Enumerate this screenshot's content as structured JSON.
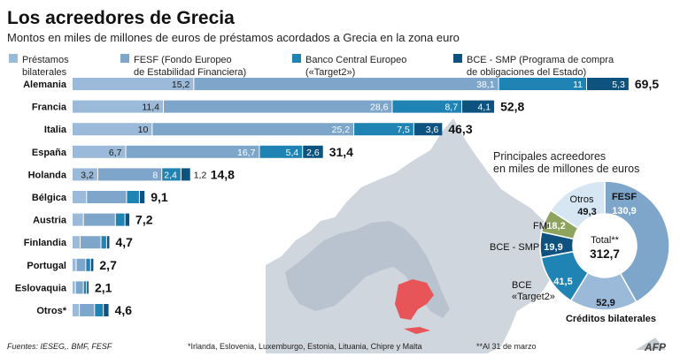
{
  "title": "Los acreedores de Grecia",
  "subtitle": "Montos en miles de millones de euros de préstamos acordados a Grecia en la zona euro",
  "colors": {
    "prestamos": "#9bbad9",
    "fesf": "#7ea6cb",
    "target2": "#1f83b4",
    "smp": "#0e5380",
    "greece": "#e85559",
    "map_land": "#cfd6de",
    "map_euro": "#b8c3cf",
    "fmi": "#8ea35e",
    "otros": "#d7e6f3",
    "rest": "#d9dde2"
  },
  "legend": [
    {
      "key": "prestamos",
      "lines": [
        "Préstamos",
        "bilaterales"
      ]
    },
    {
      "key": "fesf",
      "lines": [
        "FESF (Fondo Europeo",
        "de Estabilidad Financiera)"
      ]
    },
    {
      "key": "target2",
      "lines": [
        "Banco Central Europeo",
        "(«Target2»)"
      ]
    },
    {
      "key": "smp",
      "lines": [
        "BCE - SMP (Programa de compra",
        "de obligaciones del Estado)"
      ]
    }
  ],
  "chart_data": [
    {
      "type": "bar",
      "orientation": "horizontal",
      "stacked": true,
      "categories": [
        "Alemania",
        "Francia",
        "Italia",
        "España",
        "Holanda",
        "Bélgica",
        "Austria",
        "Finlandia",
        "Portugal",
        "Eslovaquia",
        "Otros*"
      ],
      "series": [
        {
          "key": "prestamos",
          "name": "Préstamos bilaterales",
          "values": [
            15.2,
            11.4,
            10,
            6.7,
            3.2,
            1.8,
            1.4,
            1.0,
            0.5,
            0.4,
            0.9
          ]
        },
        {
          "key": "fesf",
          "name": "FESF (Fondo Europeo de Estabilidad Financiera)",
          "values": [
            38.1,
            28.6,
            25.2,
            16.7,
            8,
            5.0,
            4.0,
            2.6,
            1.2,
            1.0,
            1.9
          ]
        },
        {
          "key": "target2",
          "name": "Banco Central Europeo («Target2»)",
          "values": [
            11,
            8.7,
            7.5,
            5.4,
            2.4,
            1.6,
            1.2,
            0.7,
            0.6,
            0.4,
            1.1
          ]
        },
        {
          "key": "smp",
          "name": "BCE - SMP (Programa de compra de obligaciones del Estado)",
          "values": [
            5.3,
            4.1,
            3.6,
            2.6,
            1.2,
            0.7,
            0.6,
            0.4,
            0.4,
            0.3,
            0.7
          ]
        }
      ],
      "segment_labels": [
        [
          "15,2",
          "38,1",
          "11",
          "5,3"
        ],
        [
          "11,4",
          "28,6",
          "8,7",
          "4,1"
        ],
        [
          "10",
          "25,2",
          "7,5",
          "3,6"
        ],
        [
          "6,7",
          "16,7",
          "5,4",
          "2,6"
        ],
        [
          "3,2",
          "8",
          "2,4",
          "1,2"
        ],
        [
          "",
          "",
          "",
          ""
        ],
        [
          "",
          "",
          "",
          ""
        ],
        [
          "",
          "",
          "",
          ""
        ],
        [
          "",
          "",
          "",
          ""
        ],
        [
          "",
          "",
          "",
          ""
        ],
        [
          "",
          "",
          "",
          ""
        ]
      ],
      "totals": [
        "69,5",
        "52,8",
        "46,3",
        "31,4",
        "14,8",
        "9,1",
        "7,2",
        "4,7",
        "2,7",
        "2,1",
        "4,6"
      ],
      "xlim": [
        0,
        69.5
      ],
      "grid": false
    },
    {
      "type": "pie",
      "donut": true,
      "title_lines": [
        "Principales acreedores",
        "en miles de millones de euros"
      ],
      "center_label": "Total**",
      "center_value": "312,7",
      "slices": [
        {
          "name": "FESF",
          "value": 130.9,
          "label": "130,9",
          "colorKey": "fesf"
        },
        {
          "name": "Créditos bilaterales",
          "value": 52.9,
          "label": "52,9",
          "colorKey": "prestamos"
        },
        {
          "name": "BCE «Target2»",
          "value": 41.5,
          "label": "41,5",
          "colorKey": "target2"
        },
        {
          "name": "BCE - SMP",
          "value": 19.9,
          "label": "19,9",
          "colorKey": "smp"
        },
        {
          "name": "FMI",
          "value": 18.2,
          "label": "18,2",
          "colorKey": "fmi"
        },
        {
          "name": "Otros",
          "value": 49.3,
          "label": "49,3",
          "colorKey": "otros"
        }
      ]
    }
  ],
  "footer": {
    "sources": "Fuentes: IESEG,. BMF, FESF",
    "note1": "*Irlanda, Eslovenia, Luxemburgo, Estonia, Lituania, Chipre y Malta",
    "note2": "**Al 31 de marzo",
    "logo": "AFP"
  }
}
